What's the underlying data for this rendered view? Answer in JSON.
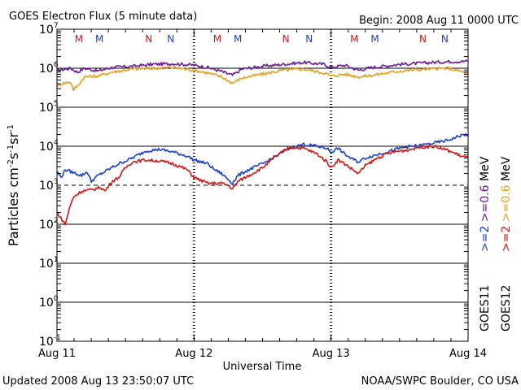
{
  "chart_data": {
    "type": "line",
    "title": "GOES Electron Flux (5 minute data)",
    "subtitle": "Begin: 2008 Aug 11 0000 UTC",
    "xlabel": "Universal Time",
    "ylabel_parts": [
      "Particles cm",
      "-2",
      "s",
      "-1",
      "sr",
      "-1"
    ],
    "footer_left": "Updated 2008 Aug 13 23:50:07 UTC",
    "footer_right": "NOAA/SWPC Boulder, CO USA",
    "x_ticks": [
      "Aug 11",
      "Aug 12",
      "Aug 13",
      "Aug 14"
    ],
    "xlim_days": [
      0,
      3
    ],
    "y_scale": "log",
    "y_exponents": [
      7,
      6,
      5,
      4,
      3,
      2,
      1,
      0,
      -1
    ],
    "ylim_log10": [
      -1,
      7
    ],
    "grid": true,
    "legend_placement": "right",
    "legend": {
      "line1_parts": [
        ">=2",
        ">=0.6",
        "MeV"
      ],
      "line2_parts": [
        ">=2",
        ">=0.6",
        "MeV"
      ],
      "satellite1": "GOES11",
      "satellite2": "GOES12",
      "colors": {
        "g11_2": "#1a3fcc",
        "g11_06": "#6b1a9a",
        "g12_2": "#d91414",
        "g12_06": "#e6a020"
      }
    },
    "markers": [
      {
        "label": "M",
        "day": 0.16,
        "color": "#d91414"
      },
      {
        "label": "M",
        "day": 0.31,
        "color": "#1a3fcc"
      },
      {
        "label": "N",
        "day": 0.67,
        "color": "#d91414"
      },
      {
        "label": "N",
        "day": 0.83,
        "color": "#1a3fcc"
      },
      {
        "label": "M",
        "day": 1.17,
        "color": "#d91414"
      },
      {
        "label": "M",
        "day": 1.32,
        "color": "#1a3fcc"
      },
      {
        "label": "N",
        "day": 1.67,
        "color": "#d91414"
      },
      {
        "label": "N",
        "day": 1.84,
        "color": "#1a3fcc"
      },
      {
        "label": "M",
        "day": 2.17,
        "color": "#d91414"
      },
      {
        "label": "M",
        "day": 2.32,
        "color": "#1a3fcc"
      },
      {
        "label": "N",
        "day": 2.67,
        "color": "#d91414"
      },
      {
        "label": "N",
        "day": 2.83,
        "color": "#1a3fcc"
      }
    ],
    "threshold_log10": 3,
    "series": [
      {
        "key": "g11_06",
        "color": "#6b1a9a",
        "points": [
          [
            0.0,
            5.95
          ],
          [
            0.05,
            5.97
          ],
          [
            0.1,
            6.0
          ],
          [
            0.15,
            5.9
          ],
          [
            0.2,
            6.0
          ],
          [
            0.3,
            5.93
          ],
          [
            0.4,
            6.02
          ],
          [
            0.55,
            6.05
          ],
          [
            0.7,
            6.1
          ],
          [
            0.85,
            6.12
          ],
          [
            1.0,
            6.08
          ],
          [
            1.1,
            6.02
          ],
          [
            1.2,
            5.92
          ],
          [
            1.28,
            5.82
          ],
          [
            1.35,
            5.98
          ],
          [
            1.5,
            6.05
          ],
          [
            1.65,
            6.1
          ],
          [
            1.8,
            6.15
          ],
          [
            1.95,
            6.1
          ],
          [
            2.0,
            6.02
          ],
          [
            2.1,
            6.08
          ],
          [
            2.2,
            5.95
          ],
          [
            2.3,
            6.02
          ],
          [
            2.5,
            6.1
          ],
          [
            2.7,
            6.14
          ],
          [
            2.85,
            6.17
          ],
          [
            3.0,
            6.18
          ]
        ]
      },
      {
        "key": "g12_06",
        "color": "#e6a020",
        "points": [
          [
            0.0,
            5.55
          ],
          [
            0.05,
            5.62
          ],
          [
            0.1,
            5.65
          ],
          [
            0.12,
            5.45
          ],
          [
            0.15,
            5.55
          ],
          [
            0.2,
            5.78
          ],
          [
            0.3,
            5.8
          ],
          [
            0.4,
            5.9
          ],
          [
            0.55,
            5.98
          ],
          [
            0.7,
            6.0
          ],
          [
            0.85,
            6.02
          ],
          [
            1.0,
            5.95
          ],
          [
            1.1,
            5.88
          ],
          [
            1.2,
            5.78
          ],
          [
            1.28,
            5.62
          ],
          [
            1.35,
            5.75
          ],
          [
            1.5,
            5.85
          ],
          [
            1.65,
            5.95
          ],
          [
            1.8,
            5.98
          ],
          [
            1.95,
            5.88
          ],
          [
            2.0,
            5.8
          ],
          [
            2.1,
            5.85
          ],
          [
            2.2,
            5.78
          ],
          [
            2.3,
            5.82
          ],
          [
            2.5,
            5.93
          ],
          [
            2.7,
            5.98
          ],
          [
            2.85,
            6.0
          ],
          [
            2.95,
            5.92
          ],
          [
            3.0,
            5.85
          ]
        ]
      },
      {
        "key": "g11_2",
        "color": "#1a3fcc",
        "points": [
          [
            0.0,
            3.35
          ],
          [
            0.03,
            3.2
          ],
          [
            0.06,
            3.4
          ],
          [
            0.1,
            3.35
          ],
          [
            0.14,
            3.3
          ],
          [
            0.18,
            3.25
          ],
          [
            0.22,
            3.35
          ],
          [
            0.25,
            3.1
          ],
          [
            0.3,
            3.25
          ],
          [
            0.35,
            3.35
          ],
          [
            0.45,
            3.55
          ],
          [
            0.55,
            3.7
          ],
          [
            0.65,
            3.88
          ],
          [
            0.75,
            3.92
          ],
          [
            0.85,
            3.85
          ],
          [
            0.95,
            3.75
          ],
          [
            1.0,
            3.65
          ],
          [
            1.1,
            3.55
          ],
          [
            1.15,
            3.4
          ],
          [
            1.2,
            3.3
          ],
          [
            1.25,
            3.15
          ],
          [
            1.28,
            3.05
          ],
          [
            1.32,
            3.25
          ],
          [
            1.4,
            3.4
          ],
          [
            1.5,
            3.55
          ],
          [
            1.6,
            3.75
          ],
          [
            1.7,
            3.95
          ],
          [
            1.8,
            4.05
          ],
          [
            1.9,
            4.0
          ],
          [
            1.97,
            3.95
          ],
          [
            2.0,
            3.85
          ],
          [
            2.05,
            3.95
          ],
          [
            2.1,
            3.8
          ],
          [
            2.15,
            3.68
          ],
          [
            2.2,
            3.6
          ],
          [
            2.25,
            3.7
          ],
          [
            2.35,
            3.8
          ],
          [
            2.45,
            3.9
          ],
          [
            2.55,
            3.98
          ],
          [
            2.65,
            4.02
          ],
          [
            2.75,
            4.08
          ],
          [
            2.85,
            4.15
          ],
          [
            2.95,
            4.28
          ],
          [
            3.0,
            4.3
          ]
        ]
      },
      {
        "key": "g12_2",
        "color": "#d91414",
        "points": [
          [
            0.0,
            2.3
          ],
          [
            0.03,
            2.15
          ],
          [
            0.06,
            2.0
          ],
          [
            0.09,
            2.4
          ],
          [
            0.12,
            2.7
          ],
          [
            0.18,
            2.85
          ],
          [
            0.25,
            2.88
          ],
          [
            0.32,
            2.95
          ],
          [
            0.35,
            2.85
          ],
          [
            0.4,
            3.1
          ],
          [
            0.45,
            3.2
          ],
          [
            0.5,
            3.45
          ],
          [
            0.55,
            3.6
          ],
          [
            0.65,
            3.65
          ],
          [
            0.75,
            3.62
          ],
          [
            0.85,
            3.55
          ],
          [
            0.95,
            3.4
          ],
          [
            1.0,
            3.2
          ],
          [
            1.1,
            3.05
          ],
          [
            1.2,
            3.05
          ],
          [
            1.25,
            3.0
          ],
          [
            1.28,
            2.9
          ],
          [
            1.32,
            3.1
          ],
          [
            1.4,
            3.25
          ],
          [
            1.5,
            3.45
          ],
          [
            1.6,
            3.75
          ],
          [
            1.7,
            3.98
          ],
          [
            1.8,
            3.95
          ],
          [
            1.9,
            3.8
          ],
          [
            1.97,
            3.6
          ],
          [
            2.0,
            3.45
          ],
          [
            2.05,
            3.65
          ],
          [
            2.1,
            3.55
          ],
          [
            2.15,
            3.42
          ],
          [
            2.2,
            3.3
          ],
          [
            2.25,
            3.5
          ],
          [
            2.35,
            3.72
          ],
          [
            2.45,
            3.85
          ],
          [
            2.55,
            3.9
          ],
          [
            2.65,
            3.98
          ],
          [
            2.75,
            4.0
          ],
          [
            2.85,
            3.9
          ],
          [
            2.95,
            3.75
          ],
          [
            3.0,
            3.7
          ]
        ]
      }
    ]
  }
}
